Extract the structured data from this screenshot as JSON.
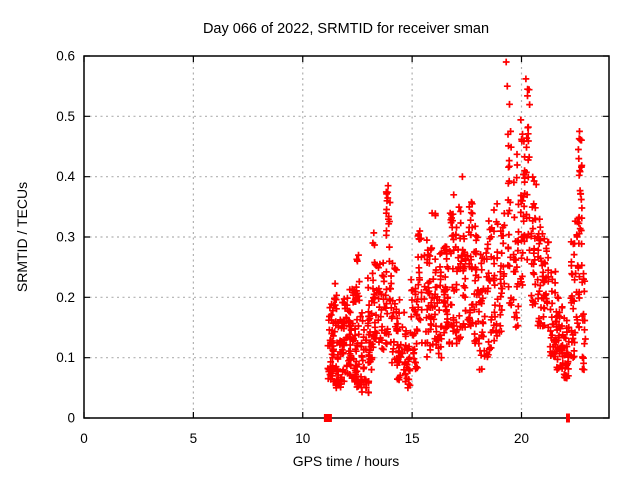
{
  "window": {
    "background": "#ffffff"
  },
  "chart_data": {
    "type": "scatter",
    "title": "Day 066 of 2022, SRMTID for receiver sman",
    "xlabel": "GPS time / hours",
    "ylabel": "SRMTID / TECUs",
    "xlim": [
      0,
      24
    ],
    "ylim": [
      0,
      0.6
    ],
    "xticks": {
      "values": [
        0,
        5,
        10,
        15,
        20
      ],
      "labels": [
        "0",
        "5",
        "10",
        "15",
        "20"
      ]
    },
    "yticks": {
      "values": [
        0,
        0.1,
        0.2,
        0.3,
        0.4,
        0.5,
        0.6
      ],
      "labels": [
        "0",
        "0.1",
        "0.2",
        "0.3",
        "0.4",
        "0.5",
        "0.6"
      ]
    },
    "grid": true,
    "legend_position": "none",
    "marker": "plus",
    "marker_color": "#ff0000",
    "grid_color": "#b0b0b0",
    "axis_color": "#000000",
    "data_extent_hours": [
      11.1,
      23.0
    ],
    "clusters_note": "dense scatter approximated as vertical columns: [x_center, x_halfwidth, y_low, y_high, n_points, bottom_bias]",
    "clusters": [
      [
        11.3,
        0.15,
        0.06,
        0.19,
        45,
        1.4
      ],
      [
        11.45,
        0.1,
        0.14,
        0.24,
        12,
        1.0
      ],
      [
        11.7,
        0.2,
        0.05,
        0.17,
        40,
        1.4
      ],
      [
        12.0,
        0.2,
        0.07,
        0.2,
        45,
        1.4
      ],
      [
        12.3,
        0.2,
        0.06,
        0.22,
        40,
        1.4
      ],
      [
        12.55,
        0.15,
        0.05,
        0.27,
        30,
        1.5
      ],
      [
        12.85,
        0.2,
        0.04,
        0.18,
        35,
        1.3
      ],
      [
        13.1,
        0.15,
        0.08,
        0.24,
        30,
        1.3
      ],
      [
        13.3,
        0.1,
        0.12,
        0.32,
        20,
        1.3
      ],
      [
        13.6,
        0.15,
        0.1,
        0.28,
        25,
        1.3
      ],
      [
        13.9,
        0.12,
        0.12,
        0.38,
        30,
        1.3
      ],
      [
        14.15,
        0.15,
        0.08,
        0.27,
        25,
        1.3
      ],
      [
        14.5,
        0.2,
        0.06,
        0.2,
        30,
        1.3
      ],
      [
        14.8,
        0.15,
        0.05,
        0.16,
        25,
        1.2
      ],
      [
        15.1,
        0.15,
        0.08,
        0.24,
        30,
        1.3
      ],
      [
        15.35,
        0.1,
        0.12,
        0.31,
        20,
        1.2
      ],
      [
        15.7,
        0.15,
        0.1,
        0.3,
        30,
        1.3
      ],
      [
        15.95,
        0.12,
        0.12,
        0.35,
        22,
        1.3
      ],
      [
        16.2,
        0.15,
        0.1,
        0.28,
        30,
        1.3
      ],
      [
        16.55,
        0.12,
        0.14,
        0.3,
        35,
        1.1
      ],
      [
        16.8,
        0.12,
        0.12,
        0.35,
        30,
        1.2
      ],
      [
        17.1,
        0.12,
        0.12,
        0.36,
        28,
        1.2
      ],
      [
        17.35,
        0.1,
        0.15,
        0.33,
        25,
        1.2
      ],
      [
        17.65,
        0.12,
        0.14,
        0.375,
        28,
        1.2
      ],
      [
        17.95,
        0.12,
        0.12,
        0.33,
        26,
        1.2
      ],
      [
        18.2,
        0.15,
        0.08,
        0.28,
        28,
        1.3
      ],
      [
        18.5,
        0.15,
        0.1,
        0.33,
        28,
        1.2
      ],
      [
        18.8,
        0.12,
        0.12,
        0.36,
        26,
        1.2
      ],
      [
        19.1,
        0.12,
        0.14,
        0.38,
        26,
        1.2
      ],
      [
        19.45,
        0.08,
        0.18,
        0.5,
        22,
        1.0
      ],
      [
        19.75,
        0.12,
        0.15,
        0.44,
        28,
        1.1
      ],
      [
        20.05,
        0.1,
        0.2,
        0.5,
        30,
        0.9
      ],
      [
        20.3,
        0.08,
        0.25,
        0.545,
        22,
        0.9
      ],
      [
        20.55,
        0.12,
        0.18,
        0.42,
        26,
        1.1
      ],
      [
        20.85,
        0.12,
        0.15,
        0.35,
        28,
        1.2
      ],
      [
        21.1,
        0.15,
        0.13,
        0.3,
        30,
        1.3
      ],
      [
        21.45,
        0.15,
        0.1,
        0.25,
        32,
        1.3
      ],
      [
        21.75,
        0.15,
        0.08,
        0.2,
        35,
        1.3
      ],
      [
        22.05,
        0.12,
        0.065,
        0.17,
        30,
        1.3
      ],
      [
        22.35,
        0.1,
        0.1,
        0.3,
        25,
        1.3
      ],
      [
        22.55,
        0.1,
        0.15,
        0.35,
        22,
        1.2
      ],
      [
        22.7,
        0.08,
        0.2,
        0.475,
        20,
        0.9
      ],
      [
        22.85,
        0.08,
        0.08,
        0.25,
        18,
        1.2
      ]
    ],
    "outlier_points": [
      [
        19.3,
        0.59
      ],
      [
        19.35,
        0.55
      ],
      [
        20.2,
        0.562
      ],
      [
        20.28,
        0.545
      ],
      [
        19.45,
        0.52
      ],
      [
        19.5,
        0.475
      ],
      [
        13.9,
        0.385
      ],
      [
        13.85,
        0.36
      ],
      [
        17.3,
        0.4
      ],
      [
        16.9,
        0.37
      ],
      [
        22.65,
        0.475
      ],
      [
        22.68,
        0.462
      ],
      [
        22.6,
        0.445
      ],
      [
        22.62,
        0.43
      ],
      [
        12.55,
        0.27
      ],
      [
        12.5,
        0.26
      ],
      [
        15.35,
        0.31
      ]
    ],
    "axis_markers": {
      "square_point": [
        11.15,
        0
      ],
      "impulse_ticks": [
        [
          22.08,
          0
        ],
        [
          22.17,
          0
        ]
      ]
    }
  }
}
